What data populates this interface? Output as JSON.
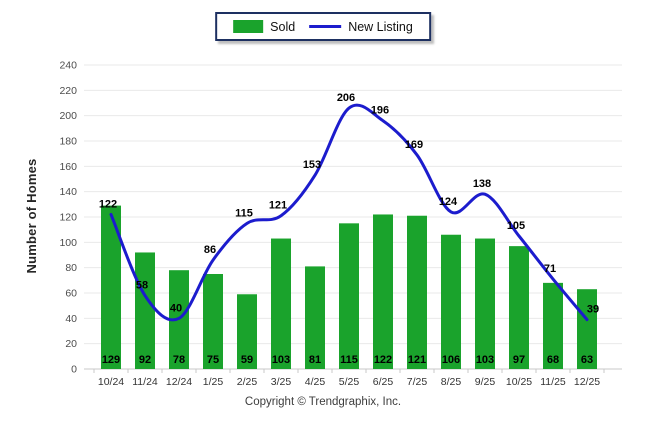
{
  "legend": {
    "sold_label": "Sold",
    "new_listing_label": "New Listing"
  },
  "footer": {
    "copyright": "Copyright © Trendgraphix, Inc."
  },
  "chart_data": {
    "type": "bar",
    "subtype": "bar+line combo",
    "categories": [
      "10/24",
      "11/24",
      "12/24",
      "1/25",
      "2/25",
      "3/25",
      "4/25",
      "5/25",
      "6/25",
      "7/25",
      "8/25",
      "9/25",
      "10/25",
      "11/25",
      "12/25"
    ],
    "series": [
      {
        "name": "Sold",
        "type": "bar",
        "color": "#1aa32c",
        "values": [
          129,
          92,
          78,
          75,
          59,
          103,
          81,
          115,
          122,
          121,
          106,
          103,
          97,
          68,
          63
        ]
      },
      {
        "name": "New Listing",
        "type": "line",
        "color": "#1c1ccd",
        "values": [
          122,
          58,
          40,
          86,
          115,
          121,
          153,
          206,
          196,
          169,
          124,
          138,
          105,
          71,
          39
        ]
      }
    ],
    "title": "",
    "xlabel": "",
    "ylabel": "Number of Homes",
    "ylim": [
      0,
      240
    ],
    "ytick_step": 20,
    "grid": true,
    "data_labels": true,
    "legend_position": "top-center",
    "line_smoothing": true
  }
}
